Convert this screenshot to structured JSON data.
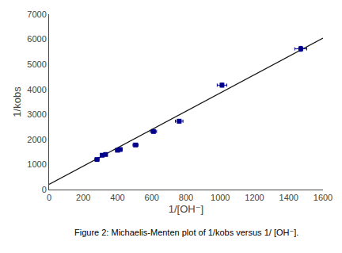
{
  "chart_data": {
    "type": "scatter",
    "xlabel": "1/[OH⁻]",
    "ylabel": "1/kobs",
    "annotations": [
      {
        "text": "Figure 2: Michaelis-Menten plot of 1/kobs versus 1/ [OH⁻]."
      }
    ],
    "series": [
      {
        "type": "line",
        "color": "#111111",
        "line_style": "solid",
        "x": [
          0,
          1600
        ],
        "values": [
          210,
          6050
        ]
      },
      {
        "type": "scatter",
        "color": "#00008B",
        "marker": "square",
        "x": [
          280,
          310,
          330,
          400,
          415,
          505,
          610,
          760,
          1010,
          1470
        ],
        "values": [
          1200,
          1370,
          1400,
          1570,
          1600,
          1780,
          2320,
          2730,
          4170,
          5620
        ],
        "x_err": [
          12,
          10,
          10,
          12,
          12,
          15,
          18,
          22,
          28,
          35
        ],
        "y_err": [
          40,
          50,
          50,
          50,
          50,
          55,
          65,
          65,
          80,
          100
        ]
      }
    ],
    "xlim": [
      0,
      1600
    ],
    "ylim": [
      0,
      7000
    ],
    "xticks": [
      0,
      200,
      400,
      600,
      800,
      1000,
      1200,
      1400,
      1600
    ],
    "yticks": [
      0,
      1000,
      2000,
      3000,
      4000,
      5000,
      6000,
      7000
    ],
    "grid": false
  }
}
